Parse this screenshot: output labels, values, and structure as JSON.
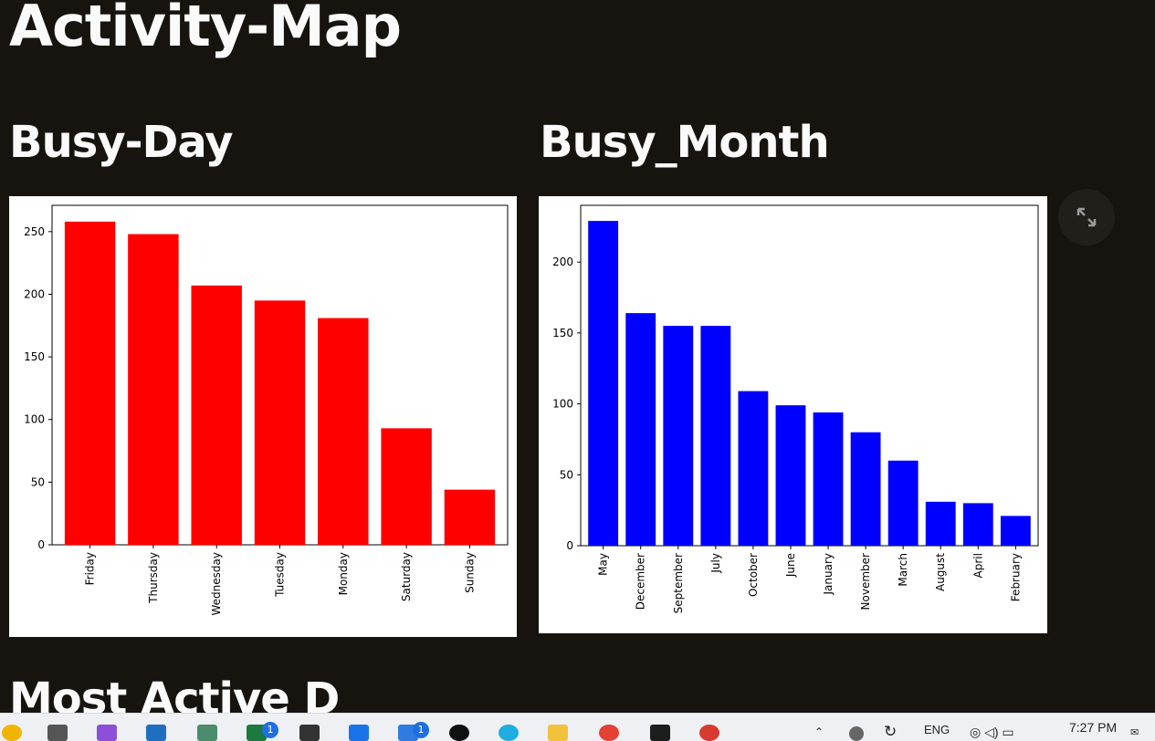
{
  "page": {
    "title": "Activity-Map",
    "partial_heading": "Most Active D"
  },
  "chart_data": [
    {
      "type": "bar",
      "heading": "Busy-Day",
      "title": "",
      "xlabel": "",
      "ylabel": "",
      "categories": [
        "Friday",
        "Thursday",
        "Wednesday",
        "Tuesday",
        "Monday",
        "Saturday",
        "Sunday"
      ],
      "values": [
        258,
        248,
        207,
        195,
        181,
        93,
        44
      ],
      "ylim": [
        0,
        271
      ],
      "yticks": [
        0,
        50,
        100,
        150,
        200,
        250
      ],
      "color": "#ff0000",
      "grid": false,
      "legend": "none"
    },
    {
      "type": "bar",
      "heading": "Busy_Month",
      "title": "",
      "xlabel": "",
      "ylabel": "",
      "categories": [
        "May",
        "December",
        "September",
        "July",
        "October",
        "June",
        "January",
        "November",
        "March",
        "August",
        "April",
        "February"
      ],
      "values": [
        229,
        164,
        155,
        155,
        109,
        99,
        94,
        80,
        60,
        31,
        30,
        21
      ],
      "ylim": [
        0,
        240
      ],
      "yticks": [
        0,
        50,
        100,
        150,
        200
      ],
      "color": "#0000ff",
      "grid": false,
      "legend": "none"
    }
  ],
  "toolbar": {
    "expand_icon": "fullscreen-expand-icon"
  },
  "taskbar": {
    "badge_excel": "1",
    "badge_todo": "1",
    "language": "ENG",
    "time": "7:27 PM"
  }
}
